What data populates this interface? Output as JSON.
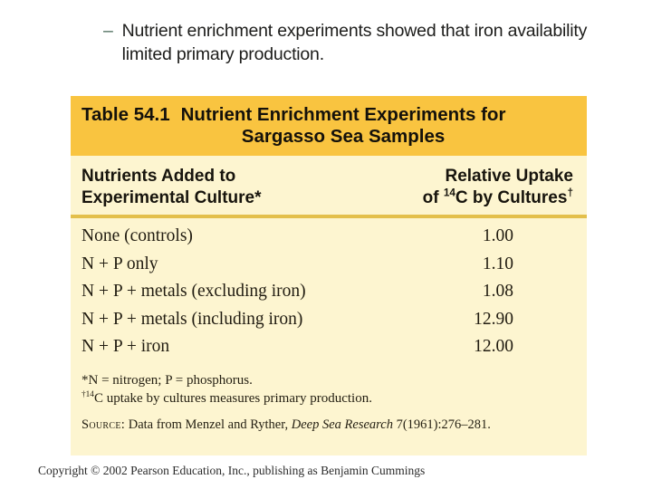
{
  "bullet": {
    "dash": "–",
    "line1": "Nutrient enrichment experiments showed that iron availability",
    "line2": "limited primary production."
  },
  "table": {
    "label": "Table 54.1",
    "title_line1": "Nutrient Enrichment Experiments for",
    "title_line2": "Sargasso Sea Samples",
    "columns": {
      "col1_line1": "Nutrients Added to",
      "col1_line2": "Experimental Culture*",
      "col2_line1": "Relative Uptake",
      "col2_line2_pre": "of ",
      "col2_line2_sup1": "14",
      "col2_line2_mid": "C by Cultures",
      "col2_line2_sup2": "†"
    },
    "rows": [
      {
        "label": "None (controls)",
        "value": "1.00"
      },
      {
        "label": "N + P only",
        "value": "1.10"
      },
      {
        "label": "N + P + metals (excluding iron)",
        "value": "1.08"
      },
      {
        "label": "N + P + metals (including iron)",
        "value": "12.90"
      },
      {
        "label": "N + P + iron",
        "value": "12.00"
      }
    ],
    "footnotes": {
      "fn1": "*N = nitrogen; P = phosphorus.",
      "fn2_sup": "†14",
      "fn2_text": "C uptake by cultures measures primary production.",
      "source_label": "Source:",
      "source_pre": " Data from Menzel and Ryther, ",
      "source_journal": "Deep Sea Research",
      "source_post": " 7(1961):276–281."
    },
    "colors": {
      "title_band": "#F9C440",
      "body_background": "#FDF5D0",
      "divider_rule": "#E3BF4B"
    }
  },
  "chart_data": {
    "type": "table",
    "title": "Table 54.1 Nutrient Enrichment Experiments for Sargasso Sea Samples",
    "columns": [
      "Nutrients Added to Experimental Culture*",
      "Relative Uptake of 14C by Cultures†"
    ],
    "rows": [
      [
        "None (controls)",
        1.0
      ],
      [
        "N + P only",
        1.1
      ],
      [
        "N + P + metals (excluding iron)",
        1.08
      ],
      [
        "N + P + metals (including iron)",
        12.9
      ],
      [
        "N + P + iron",
        12.0
      ]
    ],
    "footnotes": [
      "*N = nitrogen; P = phosphorus.",
      "†14C uptake by cultures measures primary production.",
      "SOURCE: Data from Menzel and Ryther, Deep Sea Research 7(1961):276–281."
    ]
  },
  "footer": {
    "copyright": "Copyright © 2002 Pearson Education, Inc., publishing as Benjamin Cummings"
  }
}
